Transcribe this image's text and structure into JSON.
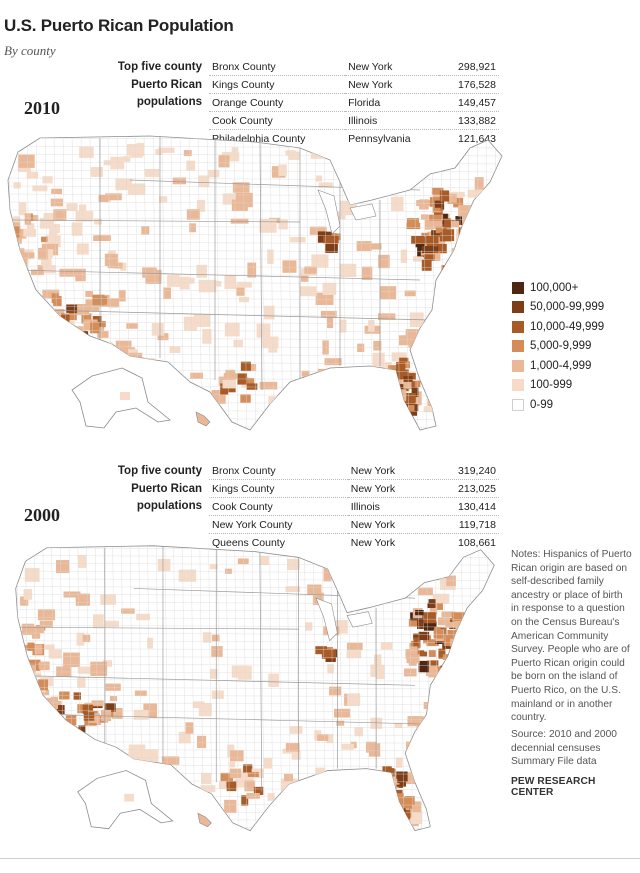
{
  "title": "U.S. Puerto Rican Population",
  "subtitle": "By county",
  "top5_label_lines": [
    "Top five county",
    "Puerto Rican",
    "populations"
  ],
  "panels": [
    {
      "year": "2010",
      "top5": [
        {
          "county": "Bronx County",
          "state": "New York",
          "population": "298,921"
        },
        {
          "county": "Kings County",
          "state": "New York",
          "population": "176,528"
        },
        {
          "county": "Orange County",
          "state": "Florida",
          "population": "149,457"
        },
        {
          "county": "Cook County",
          "state": "Illinois",
          "population": "133,882"
        },
        {
          "county": "Philadelphia County",
          "state": "Pennsylvania",
          "population": "121,643"
        }
      ]
    },
    {
      "year": "2000",
      "top5": [
        {
          "county": "Bronx County",
          "state": "New York",
          "population": "319,240"
        },
        {
          "county": "Kings County",
          "state": "New York",
          "population": "213,025"
        },
        {
          "county": "Cook County",
          "state": "Illinois",
          "population": "130,414"
        },
        {
          "county": "New York County",
          "state": "New York",
          "population": "119,718"
        },
        {
          "county": "Queens County",
          "state": "New York",
          "population": "108,661"
        }
      ]
    }
  ],
  "legend": [
    {
      "label": "100,000+",
      "color": "#4e2612"
    },
    {
      "label": "50,000-99,999",
      "color": "#7d3d17"
    },
    {
      "label": "10,000-49,999",
      "color": "#a85b26"
    },
    {
      "label": "5,000-9,999",
      "color": "#d48d58"
    },
    {
      "label": "1,000-4,999",
      "color": "#eab896"
    },
    {
      "label": "100-999",
      "color": "#f6dcc8"
    },
    {
      "label": "0-99",
      "color": "#ffffff"
    }
  ],
  "notes": "Notes: Hispanics of Puerto Rican origin are based on self-described family ancestry or place of birth in response to a question on the Census Bureau's American Community Survey. People who are of Puerto Rican origin could be born on the island of Puerto Rico, on the U.S. mainland or in another country.",
  "source": "Source: 2010 and 2000 decennial censuses Summary File data",
  "brand": "PEW RESEARCH CENTER"
}
